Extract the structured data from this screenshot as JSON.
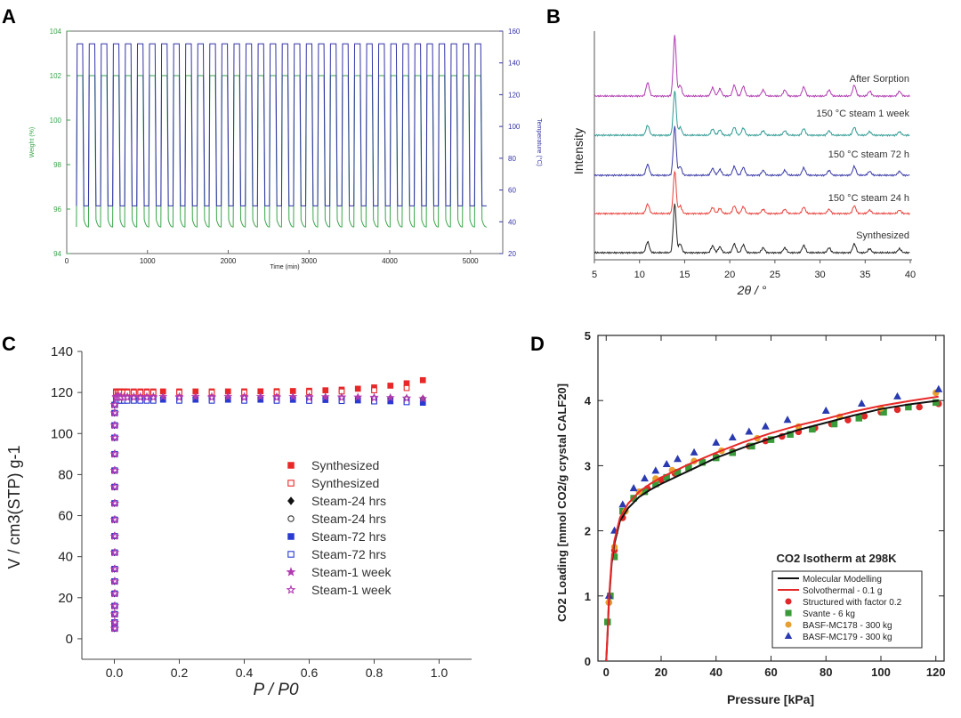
{
  "panels": {
    "A": {
      "label": "A",
      "type": "line",
      "xlabel": "Time (min)",
      "ylabel_left": "Weight (%)",
      "ylabel_right": "Temperature (°C)",
      "xlim": [
        0,
        5400
      ],
      "ylim_left": [
        94,
        104
      ],
      "ylim_right": [
        20,
        160
      ],
      "xticks": [
        "0",
        "1000",
        "2000",
        "3000",
        "4000",
        "5000"
      ],
      "yticks_left": [
        "94",
        "96",
        "98",
        "100",
        "102",
        "104"
      ],
      "yticks_right": [
        "20",
        "40",
        "60",
        "80",
        "100",
        "120",
        "140",
        "160"
      ],
      "series": [
        {
          "name": "Weight",
          "color": "#3aa64a",
          "axis": "left",
          "cycles": 34,
          "t_start": 120,
          "t_end": 5200,
          "low": 95.2,
          "high": 102.0
        },
        {
          "name": "Temperature",
          "color": "#3333a8",
          "axis": "right",
          "cycles": 34,
          "t_start": 120,
          "t_end": 5200,
          "low": 50,
          "high": 152
        }
      ]
    },
    "B": {
      "label": "B",
      "type": "line",
      "xlabel": "2θ / °",
      "ylabel": "Intensity",
      "xlim": [
        5,
        40
      ],
      "xticks": [
        "5",
        "10",
        "15",
        "20",
        "25",
        "30",
        "35",
        "40"
      ],
      "peaks": [
        [
          10.9,
          0.22
        ],
        [
          13.9,
          1.0
        ],
        [
          14.5,
          0.18
        ],
        [
          18.1,
          0.14
        ],
        [
          18.9,
          0.12
        ],
        [
          20.5,
          0.18
        ],
        [
          21.5,
          0.16
        ],
        [
          23.7,
          0.1
        ],
        [
          26.1,
          0.1
        ],
        [
          28.2,
          0.15
        ],
        [
          31.0,
          0.1
        ],
        [
          33.8,
          0.18
        ],
        [
          35.5,
          0.08
        ],
        [
          38.8,
          0.08
        ]
      ],
      "series": [
        {
          "name": "After Sorption",
          "color": "#b03ab0",
          "height": 68
        },
        {
          "name": "150 °C steam 1 week",
          "color": "#2e9a93",
          "height": 50
        },
        {
          "name": "150 °C steam 72 h",
          "color": "#3a3aa8",
          "height": 55
        },
        {
          "name": "150 °C steam 24 h",
          "color": "#e8403a",
          "height": 48
        },
        {
          "name": "Synthesized",
          "color": "#222222",
          "height": 55
        }
      ]
    },
    "C": {
      "label": "C",
      "type": "scatter",
      "xlabel": "P / P0",
      "ylabel": "V / cm3(STP) g-1",
      "xlim": [
        -0.1,
        1.1
      ],
      "ylim": [
        -10,
        140
      ],
      "xticks": [
        "0.0",
        "0.2",
        "0.4",
        "0.6",
        "0.8",
        "1.0"
      ],
      "yticks": [
        "0",
        "20",
        "40",
        "60",
        "80",
        "100",
        "120",
        "140"
      ],
      "series": [
        {
          "name": "Synthesized",
          "color": "#e82828",
          "marker": "square",
          "filled": true,
          "plateau": 120.5,
          "end": 126
        },
        {
          "name": "Synthesized",
          "color": "#e82828",
          "marker": "square",
          "filled": false,
          "plateau": 120,
          "end": 123
        },
        {
          "name": "Steam-24 hrs",
          "color": "#111111",
          "marker": "diamond",
          "filled": true,
          "plateau": 117.5,
          "end": 117
        },
        {
          "name": "Steam-24 hrs",
          "color": "#333333",
          "marker": "circle",
          "filled": false,
          "plateau": 117,
          "end": 116
        },
        {
          "name": "Steam-72 hrs",
          "color": "#2a3ad0",
          "marker": "square",
          "filled": true,
          "plateau": 116.5,
          "end": 115
        },
        {
          "name": "Steam-72 hrs",
          "color": "#2a3ad0",
          "marker": "square",
          "filled": false,
          "plateau": 116,
          "end": 115
        },
        {
          "name": "Steam-1 week",
          "color": "#b03ab0",
          "marker": "star",
          "filled": true,
          "plateau": 118,
          "end": 117
        },
        {
          "name": "Steam-1 week",
          "color": "#b03ab0",
          "marker": "star",
          "filled": false,
          "plateau": 117.5,
          "end": 117
        }
      ]
    },
    "D": {
      "label": "D",
      "type": "scatter",
      "title": "CO2 Isotherm at 298K",
      "xlabel": "Pressure [kPa]",
      "ylabel": "CO2 Loading [mmol CO2/g crystal CALF20]",
      "xlim": [
        -3,
        123
      ],
      "ylim": [
        0,
        5
      ],
      "xticks": [
        "0",
        "20",
        "40",
        "60",
        "80",
        "100",
        "120"
      ],
      "yticks": [
        "0",
        "1",
        "2",
        "3",
        "4",
        "5"
      ],
      "lines": [
        {
          "name": "Molecular Modelling",
          "color": "#111111",
          "x": [
            0.5,
            1,
            2,
            3,
            5,
            8,
            12,
            16,
            20,
            25,
            30,
            40,
            50,
            60,
            70,
            80,
            90,
            100,
            110,
            121
          ],
          "y": [
            0.4,
            0.9,
            1.5,
            1.8,
            2.15,
            2.35,
            2.52,
            2.63,
            2.72,
            2.82,
            2.92,
            3.12,
            3.28,
            3.42,
            3.55,
            3.66,
            3.77,
            3.87,
            3.94,
            4.0
          ]
        },
        {
          "name": "Solvothermal - 0.1 g",
          "color": "#e82828",
          "x": [
            0.5,
            1,
            2,
            3,
            5,
            8,
            12,
            16,
            20,
            25,
            30,
            40,
            50,
            60,
            70,
            80,
            90,
            100,
            110,
            121
          ],
          "y": [
            0.45,
            0.95,
            1.55,
            1.85,
            2.2,
            2.42,
            2.6,
            2.72,
            2.82,
            2.92,
            3.02,
            3.2,
            3.36,
            3.5,
            3.62,
            3.72,
            3.83,
            3.92,
            3.99,
            4.06
          ]
        }
      ],
      "points": [
        {
          "name": "Structured with factor 0.2",
          "color": "#e02828",
          "marker": "circle",
          "x": [
            1,
            3,
            6,
            10,
            15,
            20,
            25,
            30,
            35,
            40,
            46,
            52,
            58,
            64,
            70,
            76,
            82,
            88,
            94,
            100,
            106,
            114,
            121
          ],
          "y": [
            0.9,
            1.7,
            2.2,
            2.5,
            2.65,
            2.78,
            2.88,
            2.98,
            3.06,
            3.14,
            3.22,
            3.3,
            3.38,
            3.45,
            3.52,
            3.58,
            3.64,
            3.7,
            3.76,
            3.82,
            3.86,
            3.9,
            3.95
          ]
        },
        {
          "name": "Svante - 6 kg",
          "color": "#3a9a3a",
          "marker": "square",
          "x": [
            0.5,
            1.5,
            3,
            6,
            10,
            14,
            18,
            22,
            26,
            30,
            35,
            40,
            46,
            53,
            60,
            67,
            75,
            83,
            92,
            101,
            110,
            120
          ],
          "y": [
            0.6,
            1.0,
            1.6,
            2.3,
            2.5,
            2.6,
            2.72,
            2.82,
            2.9,
            2.97,
            3.05,
            3.12,
            3.2,
            3.3,
            3.4,
            3.48,
            3.56,
            3.64,
            3.73,
            3.82,
            3.9,
            3.97
          ]
        },
        {
          "name": "BASF-MC178 - 300 kg",
          "color": "#e8a030",
          "marker": "circle",
          "x": [
            1,
            3,
            7,
            12,
            18,
            24,
            32,
            42,
            55,
            70,
            85,
            100,
            120
          ],
          "y": [
            0.9,
            1.75,
            2.3,
            2.6,
            2.8,
            2.93,
            3.07,
            3.23,
            3.42,
            3.6,
            3.75,
            3.88,
            4.12
          ]
        },
        {
          "name": "BASF-MC179 - 300 kg",
          "color": "#2a3ab0",
          "marker": "triangle",
          "x": [
            1,
            3,
            6,
            10,
            14,
            18,
            22,
            26,
            32,
            40,
            46,
            52,
            58,
            66,
            80,
            93,
            106,
            121
          ],
          "y": [
            1.0,
            2.0,
            2.4,
            2.65,
            2.8,
            2.92,
            3.02,
            3.1,
            3.2,
            3.35,
            3.43,
            3.52,
            3.6,
            3.7,
            3.84,
            3.95,
            4.06,
            4.17
          ]
        }
      ]
    }
  }
}
